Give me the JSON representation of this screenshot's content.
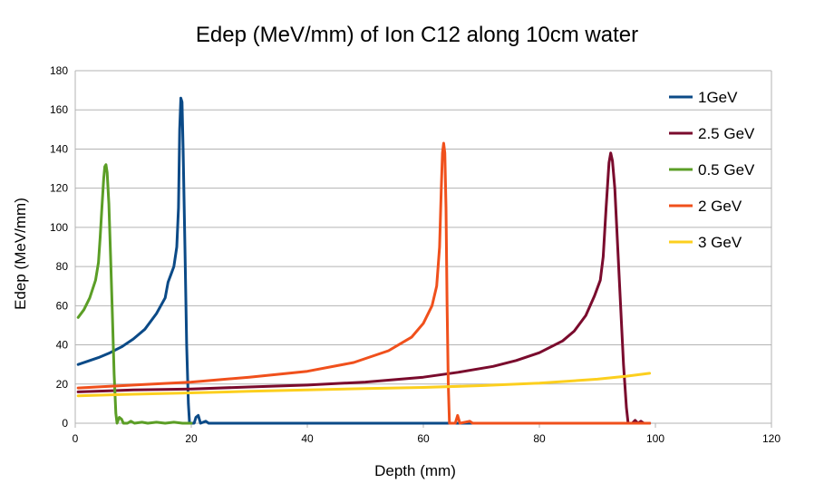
{
  "chart_data": {
    "type": "line",
    "title": "Edep (MeV/mm) of Ion C12 along 10cm water",
    "xlabel": "Depth (mm)",
    "ylabel": "Edep (MeV/mm)",
    "xlim": [
      0,
      120
    ],
    "ylim": [
      0,
      180
    ],
    "x_ticks": [
      0,
      20,
      40,
      60,
      80,
      100,
      120
    ],
    "y_ticks": [
      0,
      20,
      40,
      60,
      80,
      100,
      120,
      140,
      160,
      180
    ],
    "grid": "horizontal",
    "legend_position": "right",
    "series": [
      {
        "name": "1GeV",
        "color": "#0b4a87",
        "points": [
          [
            0.5,
            30
          ],
          [
            2,
            31.5
          ],
          [
            4,
            33.5
          ],
          [
            6,
            36
          ],
          [
            8,
            39
          ],
          [
            10,
            43
          ],
          [
            12,
            48
          ],
          [
            14,
            56
          ],
          [
            15.5,
            64
          ],
          [
            16,
            72
          ],
          [
            16.5,
            76
          ],
          [
            17,
            80
          ],
          [
            17.5,
            90
          ],
          [
            17.8,
            110
          ],
          [
            18,
            150
          ],
          [
            18.2,
            166
          ],
          [
            18.4,
            164
          ],
          [
            18.6,
            140
          ],
          [
            18.9,
            90
          ],
          [
            19.2,
            40
          ],
          [
            19.5,
            10
          ],
          [
            19.7,
            0
          ],
          [
            20.5,
            0
          ],
          [
            20.8,
            3
          ],
          [
            21.2,
            4
          ],
          [
            21.6,
            0
          ],
          [
            22.5,
            1
          ],
          [
            23,
            0
          ],
          [
            99,
            0
          ]
        ]
      },
      {
        "name": "2.5 GeV",
        "color": "#7a0b2d",
        "points": [
          [
            0.5,
            16
          ],
          [
            10,
            17
          ],
          [
            20,
            17.5
          ],
          [
            30,
            18.5
          ],
          [
            40,
            19.5
          ],
          [
            50,
            21
          ],
          [
            60,
            23.5
          ],
          [
            66,
            26
          ],
          [
            72,
            29
          ],
          [
            76,
            32
          ],
          [
            80,
            36
          ],
          [
            84,
            42
          ],
          [
            86,
            47
          ],
          [
            88,
            55
          ],
          [
            89.5,
            65
          ],
          [
            90.5,
            73
          ],
          [
            91,
            85
          ],
          [
            91.5,
            110
          ],
          [
            92,
            133
          ],
          [
            92.3,
            138
          ],
          [
            92.6,
            134
          ],
          [
            93,
            120
          ],
          [
            93.5,
            90
          ],
          [
            94,
            60
          ],
          [
            94.5,
            30
          ],
          [
            95,
            8
          ],
          [
            95.3,
            0
          ],
          [
            96,
            0
          ],
          [
            96.5,
            1.5
          ],
          [
            97,
            0
          ],
          [
            97.5,
            1
          ],
          [
            98,
            0
          ],
          [
            99,
            0
          ]
        ]
      },
      {
        "name": "0.5 GeV",
        "color": "#5b9e26",
        "points": [
          [
            0.5,
            54
          ],
          [
            1.5,
            58
          ],
          [
            2.5,
            64
          ],
          [
            3.5,
            73
          ],
          [
            4,
            82
          ],
          [
            4.3,
            95
          ],
          [
            4.6,
            110
          ],
          [
            4.9,
            125
          ],
          [
            5.1,
            131
          ],
          [
            5.3,
            132
          ],
          [
            5.5,
            128
          ],
          [
            5.8,
            112
          ],
          [
            6.1,
            85
          ],
          [
            6.4,
            55
          ],
          [
            6.7,
            25
          ],
          [
            7,
            5
          ],
          [
            7.2,
            0
          ],
          [
            7.6,
            3
          ],
          [
            8,
            2
          ],
          [
            8.3,
            0
          ],
          [
            9,
            0
          ],
          [
            9.6,
            1
          ],
          [
            10.2,
            0
          ],
          [
            11.5,
            0.5
          ],
          [
            12.5,
            0
          ],
          [
            14,
            0.5
          ],
          [
            15.5,
            0
          ],
          [
            17,
            0.5
          ],
          [
            18.5,
            0
          ],
          [
            20,
            0
          ]
        ]
      },
      {
        "name": "2 GeV",
        "color": "#f0501c",
        "points": [
          [
            0.5,
            18
          ],
          [
            10,
            19.5
          ],
          [
            20,
            21
          ],
          [
            30,
            23.5
          ],
          [
            40,
            26.5
          ],
          [
            48,
            31
          ],
          [
            54,
            37
          ],
          [
            58,
            44
          ],
          [
            60,
            51
          ],
          [
            61.5,
            60
          ],
          [
            62.3,
            70
          ],
          [
            62.8,
            90
          ],
          [
            63.1,
            120
          ],
          [
            63.3,
            138
          ],
          [
            63.5,
            143
          ],
          [
            63.7,
            138
          ],
          [
            63.9,
            110
          ],
          [
            64.1,
            60
          ],
          [
            64.3,
            20
          ],
          [
            64.5,
            0
          ],
          [
            65.5,
            0
          ],
          [
            65.9,
            4
          ],
          [
            66.3,
            0
          ],
          [
            68,
            1
          ],
          [
            68.5,
            0
          ],
          [
            99,
            0
          ]
        ]
      },
      {
        "name": "3 GeV",
        "color": "#fccf1e",
        "points": [
          [
            0.5,
            14
          ],
          [
            10,
            14.8
          ],
          [
            20,
            15.5
          ],
          [
            30,
            16.3
          ],
          [
            40,
            17
          ],
          [
            50,
            17.7
          ],
          [
            60,
            18.3
          ],
          [
            70,
            19.2
          ],
          [
            80,
            20.5
          ],
          [
            90,
            22.5
          ],
          [
            95,
            24
          ],
          [
            99,
            25.5
          ]
        ]
      }
    ]
  }
}
